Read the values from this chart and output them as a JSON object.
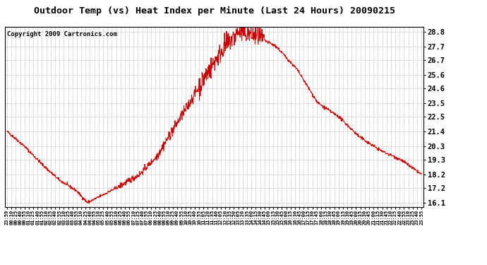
{
  "title": "Outdoor Temp (vs) Heat Index per Minute (Last 24 Hours) 20090215",
  "copyright": "Copyright 2009 Cartronics.com",
  "line_color": "#cc0000",
  "background_color": "#ffffff",
  "grid_color": "#aaaaaa",
  "yticks": [
    16.1,
    17.2,
    18.2,
    19.3,
    20.3,
    21.4,
    22.5,
    23.5,
    24.6,
    25.6,
    26.7,
    27.7,
    28.8
  ],
  "ylim": [
    15.8,
    29.2
  ],
  "xtick_labels": [
    "23:59",
    "00:10",
    "00:25",
    "00:40",
    "00:55",
    "01:10",
    "01:25",
    "01:40",
    "01:55",
    "02:10",
    "02:25",
    "02:40",
    "02:55",
    "03:10",
    "03:25",
    "03:40",
    "03:55",
    "04:10",
    "04:25",
    "04:40",
    "04:55",
    "05:10",
    "05:25",
    "05:40",
    "05:55",
    "06:10",
    "06:25",
    "06:40",
    "06:55",
    "07:10",
    "07:25",
    "07:40",
    "07:55",
    "08:10",
    "08:25",
    "08:40",
    "08:55",
    "09:10",
    "09:25",
    "09:40",
    "09:55",
    "10:10",
    "10:25",
    "10:40",
    "10:55",
    "11:05",
    "11:20",
    "11:35",
    "11:40",
    "12:05",
    "12:20",
    "12:35",
    "12:50",
    "13:05",
    "13:20",
    "13:35",
    "14:00",
    "14:15",
    "14:30",
    "14:45",
    "15:00",
    "15:15",
    "15:30",
    "15:45",
    "16:00",
    "16:15",
    "16:30",
    "16:45",
    "17:00",
    "17:15",
    "17:30",
    "17:45",
    "18:00",
    "18:15",
    "18:30",
    "18:45",
    "19:00",
    "19:15",
    "19:30",
    "19:45",
    "20:00",
    "20:15",
    "20:30",
    "20:45",
    "21:00",
    "21:15",
    "21:30",
    "21:45",
    "22:10",
    "22:25",
    "22:40",
    "22:55",
    "23:10",
    "23:25",
    "23:40",
    "23:55"
  ],
  "keypoints_t": [
    0.0,
    0.042,
    0.083,
    0.125,
    0.167,
    0.194,
    0.22,
    0.27,
    0.32,
    0.36,
    0.4,
    0.44,
    0.48,
    0.52,
    0.558,
    0.6,
    0.65,
    0.7,
    0.75,
    0.8,
    0.85,
    0.9,
    0.95,
    1.0
  ],
  "keypoints_v": [
    21.4,
    20.3,
    19.0,
    17.8,
    17.0,
    16.1,
    16.5,
    17.3,
    18.2,
    19.5,
    21.5,
    23.5,
    25.6,
    27.5,
    28.8,
    28.5,
    27.7,
    26.0,
    23.5,
    22.5,
    21.0,
    20.0,
    19.3,
    18.2
  ],
  "title_fontsize": 9.5,
  "copyright_fontsize": 6.5,
  "ytick_fontsize": 7.5,
  "xtick_fontsize": 5.0
}
